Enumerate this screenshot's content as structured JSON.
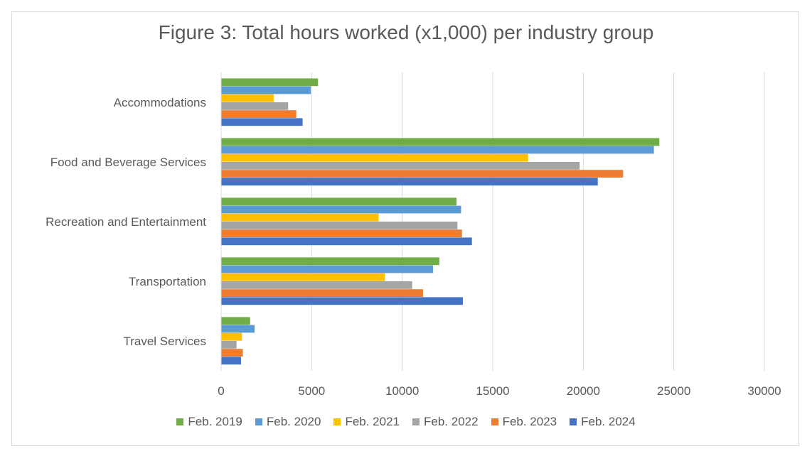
{
  "chart_data": {
    "type": "bar",
    "orientation": "horizontal",
    "title": "Figure 3: Total hours worked (x1,000) per industry group",
    "xlabel": "",
    "ylabel": "",
    "xlim": [
      0,
      30000
    ],
    "xticks": [
      0,
      5000,
      10000,
      15000,
      20000,
      25000,
      30000
    ],
    "grid": true,
    "legend_position": "bottom",
    "categories": [
      "Accommodations",
      "Food and Beverage Services",
      "Recreation and Entertainment",
      "Transportation",
      "Travel Services"
    ],
    "series": [
      {
        "name": "Feb. 2019",
        "color": "#70ad47",
        "values": [
          5350,
          24200,
          13000,
          12050,
          1600
        ]
      },
      {
        "name": "Feb. 2020",
        "color": "#5b9bd5",
        "values": [
          4950,
          23900,
          13250,
          11700,
          1850
        ]
      },
      {
        "name": "Feb. 2021",
        "color": "#ffc000",
        "values": [
          2900,
          16950,
          8700,
          9050,
          1150
        ]
      },
      {
        "name": "Feb. 2022",
        "color": "#a5a5a5",
        "values": [
          3700,
          19800,
          13050,
          10550,
          850
        ]
      },
      {
        "name": "Feb. 2023",
        "color": "#ed7d31",
        "values": [
          4150,
          22200,
          13300,
          11150,
          1200
        ]
      },
      {
        "name": "Feb. 2024",
        "color": "#4472c4",
        "values": [
          4500,
          20800,
          13850,
          13350,
          1100
        ]
      }
    ]
  }
}
